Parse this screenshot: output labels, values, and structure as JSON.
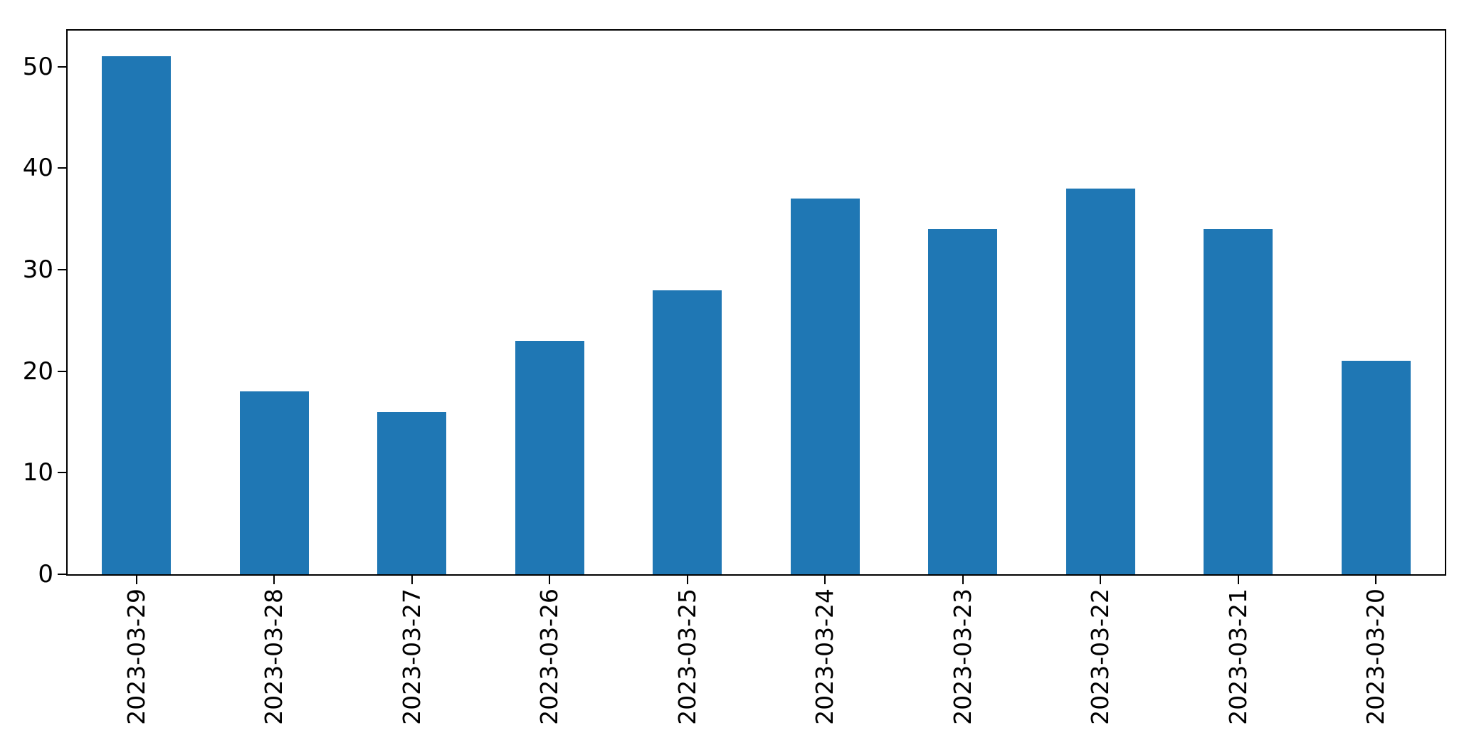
{
  "chart_data": {
    "type": "bar",
    "categories": [
      "2023-03-29",
      "2023-03-28",
      "2023-03-27",
      "2023-03-26",
      "2023-03-25",
      "2023-03-24",
      "2023-03-23",
      "2023-03-22",
      "2023-03-21",
      "2023-03-20"
    ],
    "values": [
      51,
      18,
      16,
      23,
      28,
      37,
      34,
      38,
      34,
      21
    ],
    "title": "",
    "xlabel": "",
    "ylabel": "",
    "yticks": [
      0,
      10,
      20,
      30,
      40,
      50
    ],
    "ylim": [
      0,
      53.55
    ],
    "grid": false,
    "legend": null,
    "x_tick_label_rotation_deg": 90,
    "bar_width_fraction": 0.5,
    "colors": {
      "bar": "#1f77b4",
      "axis": "#000000",
      "tick_label": "#000000",
      "background": "#ffffff"
    }
  }
}
